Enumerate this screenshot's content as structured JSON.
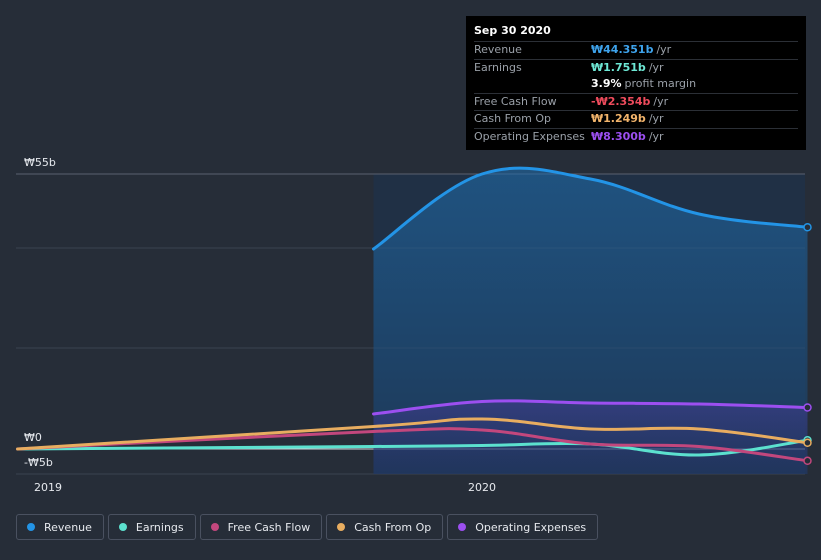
{
  "tooltip": {
    "date": "Sep 30 2020",
    "rows": [
      {
        "label": "Revenue",
        "value": "₩44.351b",
        "unit": "/yr",
        "color": "#3ea3ec"
      },
      {
        "label": "Earnings",
        "value": "₩1.751b",
        "unit": "/yr",
        "color": "#6ee8d5"
      },
      {
        "label": "Free Cash Flow",
        "value": "-₩2.354b",
        "unit": "/yr",
        "color": "#ee4b5c"
      },
      {
        "label": "Cash From Op",
        "value": "₩1.249b",
        "unit": "/yr",
        "color": "#f2b46b"
      },
      {
        "label": "Operating Expenses",
        "value": "₩8.300b",
        "unit": "/yr",
        "color": "#9c4ff0"
      }
    ],
    "margin": {
      "value": "3.9%",
      "text": "profit margin"
    }
  },
  "legend": [
    {
      "label": "Revenue",
      "color": "#2394e6"
    },
    {
      "label": "Earnings",
      "color": "#5ce1cf"
    },
    {
      "label": "Free Cash Flow",
      "color": "#c2477d"
    },
    {
      "label": "Cash From Op",
      "color": "#e8ad60"
    },
    {
      "label": "Operating Expenses",
      "color": "#9c4ff0"
    }
  ],
  "chart_data": {
    "type": "line",
    "title": "",
    "xlabel": "",
    "ylabel": "",
    "x_ticks": [
      {
        "label": "2019",
        "value": 2019.0
      },
      {
        "label": "2020",
        "value": 2020.0
      }
    ],
    "y_ticks": [
      {
        "label": "₩55b",
        "value": 55
      },
      {
        "label": "₩0",
        "value": 0
      },
      {
        "label": "-₩5b",
        "value": -5
      }
    ],
    "xlim": [
      2018.93,
      2020.75
    ],
    "ylim": [
      -5,
      55
    ],
    "highlight_start": 2019.75,
    "series": [
      {
        "name": "Revenue",
        "color": "#2394e6",
        "x": [
          2019.75,
          2020.0,
          2020.25,
          2020.5,
          2020.75
        ],
        "values": [
          40,
          55,
          54,
          47,
          44.351
        ]
      },
      {
        "name": "Earnings",
        "color": "#5ce1cf",
        "x": [
          2018.93,
          2019.75,
          2020.0,
          2020.25,
          2020.5,
          2020.75
        ],
        "values": [
          0,
          0.5,
          0.7,
          1.0,
          -1.2,
          1.751
        ]
      },
      {
        "name": "Free Cash Flow",
        "color": "#c2477d",
        "x": [
          2018.93,
          2019.75,
          2020.0,
          2020.25,
          2020.5,
          2020.75
        ],
        "values": [
          0,
          3.5,
          3.8,
          1.0,
          0.5,
          -2.354
        ]
      },
      {
        "name": "Cash From Op",
        "color": "#e8ad60",
        "x": [
          2018.93,
          2019.75,
          2020.0,
          2020.25,
          2020.5,
          2020.75
        ],
        "values": [
          0,
          4.5,
          6,
          4,
          4,
          1.249
        ]
      },
      {
        "name": "Operating Expenses",
        "color": "#9c4ff0",
        "x": [
          2019.75,
          2020.0,
          2020.25,
          2020.5,
          2020.75
        ],
        "values": [
          7,
          9.5,
          9.2,
          9.0,
          8.3
        ]
      }
    ]
  }
}
